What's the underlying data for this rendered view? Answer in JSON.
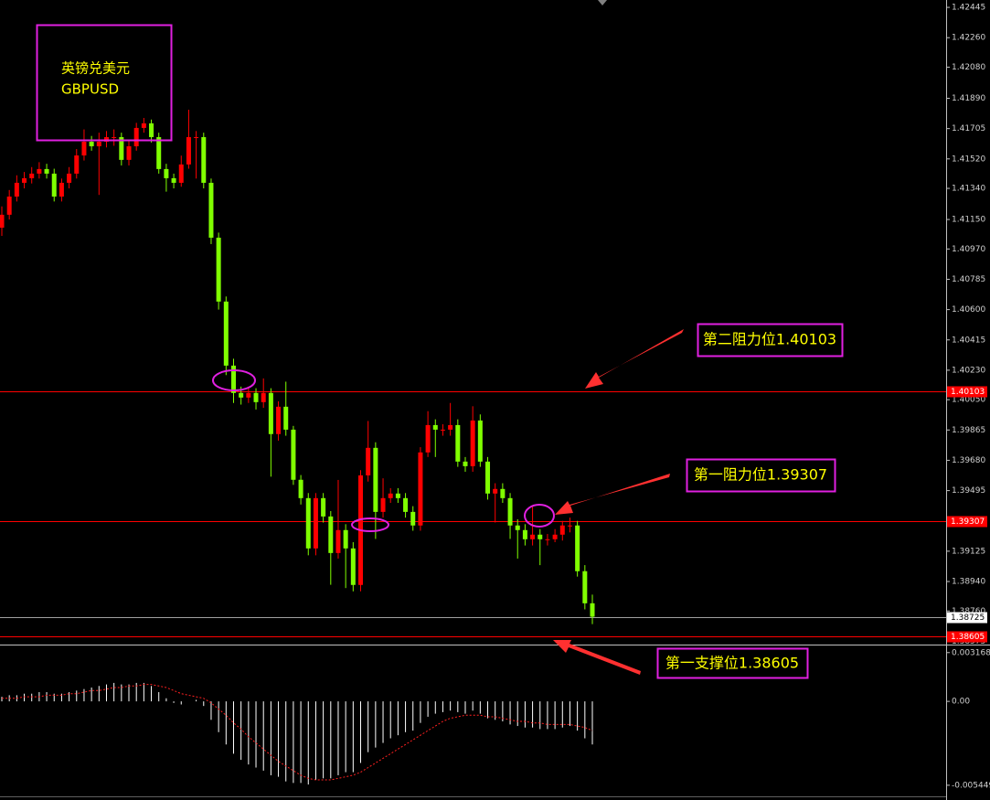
{
  "chart_data": [
    {
      "type": "candlestick",
      "title": "英镑兑美元",
      "subtitle": "GBPUSD",
      "annotations": [
        "第二阻力位1.40103",
        "第一阻力位1.39307",
        "第一支撑位1.38605"
      ],
      "up_color": "#ff0000",
      "down_color": "#80ff00",
      "ylim": [
        1.38555,
        1.4249
      ],
      "yticks": [
        1.42445,
        {
          "value": 1.4226,
          "label": "1.42260"
        },
        {
          "value": 1.4208,
          "label": "1.42080"
        },
        {
          "value": 1.4189,
          "label": "1.41890"
        },
        1.41705,
        {
          "value": 1.4152,
          "label": "1.41520"
        },
        {
          "value": 1.4134,
          "label": "1.41340"
        },
        {
          "value": 1.4115,
          "label": "1.41150"
        },
        {
          "value": 1.4097,
          "label": "1.40970"
        },
        1.40785,
        {
          "value": 1.406,
          "label": "1.40600"
        },
        1.40415,
        {
          "value": 1.4023,
          "label": "1.40230"
        },
        {
          "value": 1.4005,
          "label": "1.40050"
        },
        1.39865,
        {
          "value": 1.3968,
          "label": "1.39680"
        },
        1.39495,
        {
          "value": 1.3931,
          "label": "1.39310"
        },
        1.39125,
        {
          "value": 1.3894,
          "label": "1.38940"
        },
        {
          "value": 1.3876,
          "label": "1.38760"
        },
        1.38575
      ],
      "levels": [
        {
          "value": 1.40103,
          "color": "#ff0000"
        },
        {
          "value": 1.39307,
          "color": "#ff0000"
        },
        {
          "value": 1.38725,
          "color": "#a0a0a0"
        },
        {
          "value": 1.38605,
          "color": "#ff0000"
        }
      ],
      "open": [
        1.411,
        1.41179,
        1.4129,
        1.41374,
        1.41402,
        1.4143,
        1.41458,
        1.4143,
        1.4129,
        1.41374,
        1.4143,
        1.41541,
        1.41625,
        1.41597,
        1.41625,
        1.41653,
        1.41653,
        1.41514,
        1.41597,
        1.41709,
        1.41737,
        1.41653,
        1.41458,
        1.41402,
        1.41374,
        1.41486,
        1.41653,
        1.41653,
        1.41374,
        1.41039,
        1.40649,
        1.40258,
        1.40091,
        1.40063,
        1.40091,
        1.40035,
        1.40091,
        1.3984,
        1.40007,
        1.39867,
        1.39561,
        1.39449,
        1.39142,
        1.39449,
        1.39337,
        1.39114,
        1.39254,
        1.39142,
        1.38919,
        1.39588,
        1.39756,
        1.39365,
        1.39449,
        1.39477,
        1.39449,
        1.39365,
        1.39282,
        1.39728,
        1.39895,
        1.39867,
        1.39867,
        1.39895,
        1.39672,
        1.39644,
        1.39923,
        1.39672,
        1.39477,
        1.39505,
        1.39449,
        1.39282,
        1.39254,
        1.39198,
        1.39226,
        1.39198,
        1.39198,
        1.39226,
        1.39282,
        1.39282,
        1.39003,
        1.38807
      ],
      "high": [
        1.4123,
        1.4133,
        1.4142,
        1.4144,
        1.4147,
        1.415,
        1.4149,
        1.4146,
        1.414,
        1.4147,
        1.4158,
        1.417,
        1.4166,
        1.4168,
        1.4169,
        1.417,
        1.4168,
        1.4163,
        1.4174,
        1.4177,
        1.4176,
        1.4168,
        1.4149,
        1.4143,
        1.4154,
        1.4182,
        1.4169,
        1.4168,
        1.414,
        1.4107,
        1.4068,
        1.403,
        1.4013,
        1.4013,
        1.4012,
        1.4018,
        1.4012,
        1.4004,
        1.4016,
        1.3989,
        1.3959,
        1.3948,
        1.3948,
        1.3948,
        1.3937,
        1.3956,
        1.3929,
        1.3918,
        1.3962,
        1.3992,
        1.3979,
        1.3957,
        1.3951,
        1.3951,
        1.3948,
        1.394,
        1.3976,
        1.3998,
        1.3993,
        1.399,
        1.4003,
        1.3993,
        1.397,
        1.4001,
        1.3996,
        1.397,
        1.3954,
        1.3954,
        1.3948,
        1.3932,
        1.3929,
        1.394,
        1.3926,
        1.3923,
        1.3926,
        1.3931,
        1.3933,
        1.3931,
        1.3904,
        1.3886
      ],
      "low": [
        1.4105,
        1.4115,
        1.4126,
        1.4134,
        1.4137,
        1.414,
        1.414,
        1.4126,
        1.4126,
        1.4134,
        1.414,
        1.4151,
        1.4157,
        1.413,
        1.4159,
        1.416,
        1.4148,
        1.4148,
        1.4157,
        1.4168,
        1.4162,
        1.4143,
        1.4132,
        1.4134,
        1.4135,
        1.4146,
        1.414,
        1.4134,
        1.41,
        1.406,
        1.402,
        1.4003,
        1.4002,
        1.4003,
        1.3999,
        1.4,
        1.3958,
        1.398,
        1.3983,
        1.3953,
        1.3941,
        1.391,
        1.391,
        1.393,
        1.3892,
        1.3908,
        1.389,
        1.3888,
        1.3888,
        1.3955,
        1.392,
        1.3933,
        1.3942,
        1.3942,
        1.3933,
        1.3925,
        1.3925,
        1.397,
        1.397,
        1.3983,
        1.3983,
        1.3964,
        1.3961,
        1.3961,
        1.3964,
        1.3944,
        1.393,
        1.3942,
        1.392,
        1.3908,
        1.3916,
        1.3916,
        1.3904,
        1.3916,
        1.3918,
        1.3919,
        1.3924,
        1.3897,
        1.3877,
        1.3868
      ],
      "close": [
        1.41179,
        1.4129,
        1.41374,
        1.41402,
        1.4143,
        1.41458,
        1.4143,
        1.4129,
        1.41374,
        1.4143,
        1.41541,
        1.41625,
        1.41597,
        1.41625,
        1.41653,
        1.41653,
        1.41514,
        1.41597,
        1.41709,
        1.41737,
        1.41653,
        1.41458,
        1.41402,
        1.41374,
        1.41486,
        1.41653,
        1.41653,
        1.41374,
        1.41039,
        1.40649,
        1.40258,
        1.40091,
        1.40063,
        1.40091,
        1.40035,
        1.40091,
        1.3984,
        1.40007,
        1.39867,
        1.39561,
        1.39449,
        1.39142,
        1.39449,
        1.39337,
        1.39114,
        1.39254,
        1.39142,
        1.38919,
        1.39588,
        1.39756,
        1.39365,
        1.39449,
        1.39477,
        1.39449,
        1.39365,
        1.39282,
        1.39728,
        1.39895,
        1.39867,
        1.39867,
        1.39895,
        1.39672,
        1.39644,
        1.39923,
        1.39672,
        1.39477,
        1.39505,
        1.39449,
        1.39282,
        1.39254,
        1.39198,
        1.39226,
        1.39198,
        1.39198,
        1.39226,
        1.39282,
        1.39282,
        1.39003,
        1.38807,
        1.38725
      ]
    },
    {
      "type": "macd",
      "ylim": [
        -0.00611,
        0.00363
      ],
      "yticks": [
        0.003168,
        {
          "value": 0,
          "label": "0.00"
        },
        -0.005449
      ],
      "series": [
        {
          "color": "#ffffff",
          "values": [
            0.0003,
            0.0004,
            0.0004,
            0.0005,
            0.0005,
            0.0006,
            0.0006,
            0.0005,
            0.0005,
            0.0006,
            0.0007,
            0.0008,
            0.0009,
            0.001,
            0.0011,
            0.0012,
            0.0011,
            0.0011,
            0.0012,
            0.0012,
            0.001,
            0.0006,
            0.0002,
            -0.0001,
            -0.0002,
            0,
            0.0001,
            -0.0003,
            -0.0012,
            -0.002,
            -0.0028,
            -0.0034,
            -0.0038,
            -0.0041,
            -0.0043,
            -0.0045,
            -0.0048,
            -0.0049,
            -0.0052,
            -0.0053,
            -0.0053,
            -0.0054,
            -0.0051,
            -0.005,
            -0.005,
            -0.0048,
            -0.0046,
            -0.0046,
            -0.004,
            -0.0033,
            -0.003,
            -0.0027,
            -0.0024,
            -0.0022,
            -0.002,
            -0.0019,
            -0.0014,
            -0.001,
            -0.0008,
            -0.0007,
            -0.0006,
            -0.0007,
            -0.0008,
            -0.0006,
            -0.0008,
            -0.0011,
            -0.0012,
            -0.0013,
            -0.0015,
            -0.0016,
            -0.0017,
            -0.0017,
            -0.0018,
            -0.0018,
            -0.0018,
            -0.0017,
            -0.0016,
            -0.0019,
            -0.0024,
            -0.0028
          ]
        },
        {
          "color": "#ff2020",
          "values": [
            0.0002,
            0.0002,
            0.0002,
            0.0003,
            0.0003,
            0.0003,
            0.0004,
            0.0004,
            0.0004,
            0.0005,
            0.0005,
            0.0006,
            0.0007,
            0.0007,
            0.0008,
            0.0009,
            0.0009,
            0.001,
            0.001,
            0.0011,
            0.0011,
            0.001,
            0.0009,
            0.0007,
            0.0005,
            0.0004,
            0.0003,
            0.0002,
            -0.0001,
            -0.0005,
            -0.0009,
            -0.0014,
            -0.0018,
            -0.0023,
            -0.0027,
            -0.0031,
            -0.0035,
            -0.0039,
            -0.0042,
            -0.0045,
            -0.0048,
            -0.005,
            -0.0051,
            -0.0051,
            -0.0051,
            -0.005,
            -0.0049,
            -0.0048,
            -0.0046,
            -0.0043,
            -0.004,
            -0.0037,
            -0.0034,
            -0.0031,
            -0.0028,
            -0.0025,
            -0.0022,
            -0.0019,
            -0.0016,
            -0.0013,
            -0.0011,
            -0.001,
            -0.0009,
            -0.0009,
            -0.0009,
            -0.001,
            -0.001,
            -0.0011,
            -0.0012,
            -0.0013,
            -0.0013,
            -0.0014,
            -0.0014,
            -0.0015,
            -0.0015,
            -0.0015,
            -0.0015,
            -0.0016,
            -0.0017,
            -0.0019
          ]
        }
      ]
    }
  ]
}
